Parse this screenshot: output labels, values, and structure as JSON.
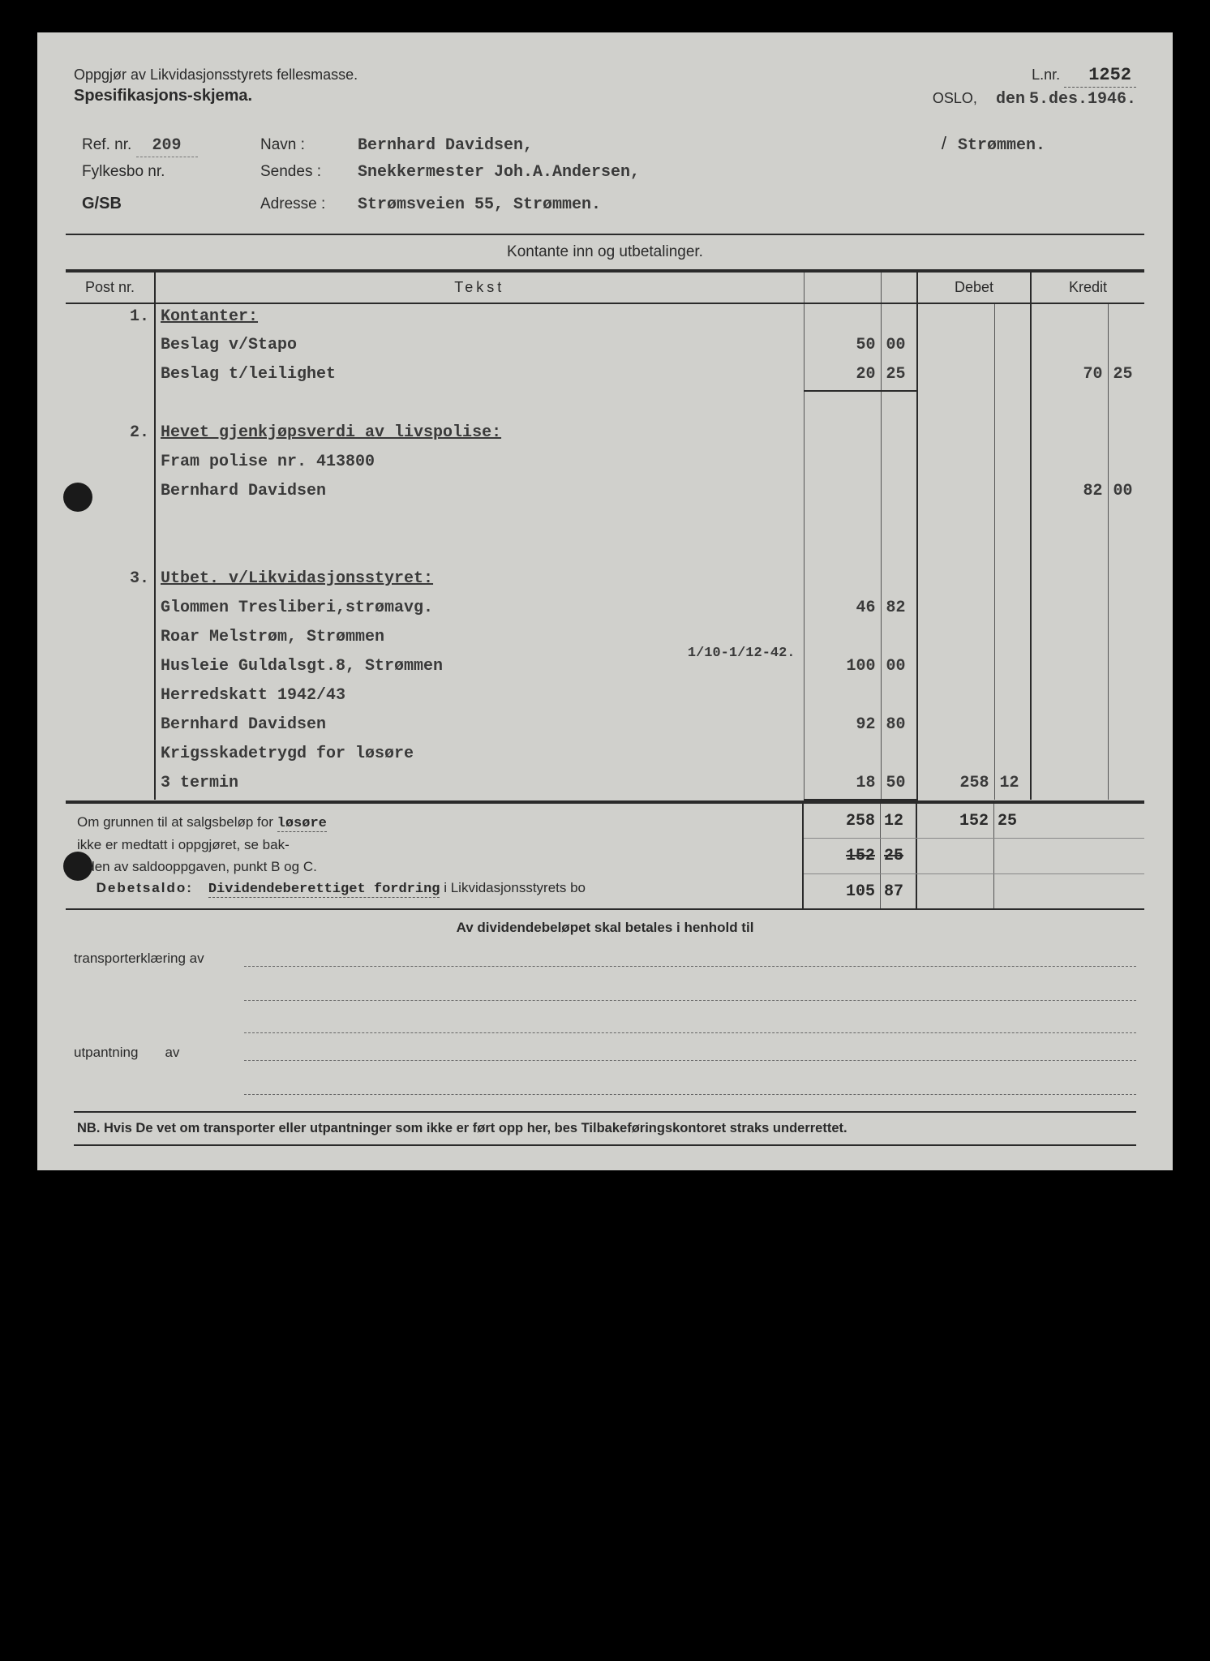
{
  "header": {
    "title_line1": "Oppgjør av Likvidasjonsstyrets fellesmasse.",
    "title_line2": "Spesifikasjons-skjema.",
    "lnr_label": "L.nr.",
    "lnr_value": "1252",
    "place": "OSLO,",
    "date_prefix": "den",
    "date_value": "5.des.1946."
  },
  "info": {
    "ref_label": "Ref. nr.",
    "ref_value": "209",
    "navn_label": "Navn :",
    "navn_value": "Bernhard Davidsen,",
    "navn_place": "Strømmen.",
    "fylkesbo_label": "Fylkesbo nr.",
    "fylkesbo_value": "",
    "sendes_label": "Sendes :",
    "sendes_value": "Snekkermester Joh.A.Andersen,",
    "code": "G/SB",
    "adresse_label": "Adresse :",
    "adresse_value": "Strømsveien 55, Strømmen."
  },
  "section_title": "Kontante inn og utbetalinger.",
  "columns": {
    "post": "Post nr.",
    "tekst": "Tekst",
    "debet": "Debet",
    "kredit": "Kredit"
  },
  "rows": [
    {
      "post": "1.",
      "tekst": "Kontanter:",
      "under": true
    },
    {
      "tekst": "Beslag v/Stapo",
      "s1": "50",
      "s2": "00"
    },
    {
      "tekst": "Beslag t/leilighet",
      "s1": "20",
      "s2": "25",
      "k1": "70",
      "k2": "25",
      "sub_line": true
    },
    {
      "blank": true
    },
    {
      "post": "2.",
      "tekst": "Hevet gjenkjøpsverdi av livspolise:",
      "under": true
    },
    {
      "tekst": "Fram polise nr. 413800"
    },
    {
      "tekst": "Bernhard Davidsen",
      "k1": "82",
      "k2": "00"
    },
    {
      "blank": true
    },
    {
      "blank": true
    },
    {
      "post": "3.",
      "tekst": "Utbet. v/Likvidasjonsstyret:",
      "under": true
    },
    {
      "tekst": "Glommen Tresliberi,strømavg.",
      "s1": "46",
      "s2": "82"
    },
    {
      "tekst": "Roar Melstrøm, Strømmen"
    },
    {
      "tekst_pre": "Husleie Guldalsgt.8, Strømmen",
      "tekst_sup": "1/10-1/12-42.",
      "s1": "100",
      "s2": "00"
    },
    {
      "tekst": "Herredskatt 1942/43"
    },
    {
      "tekst": "Bernhard Davidsen",
      "s1": "92",
      "s2": "80"
    },
    {
      "tekst": "Krigsskadetrygd for løsøre"
    },
    {
      "tekst": "3 termin",
      "s1": "18",
      "s2": "50",
      "d1": "258",
      "d2": "12",
      "sub_line": true
    }
  ],
  "footer": {
    "note_l1": "Om grunnen til at salgsbeløp for",
    "note_l1b": "løsøre",
    "note_l2": "ikke er medtatt i oppgjøret, se bak-",
    "note_l3": "siden av saldooppgaven, punkt B og C.",
    "debetsaldo_label": "Debetsaldo:",
    "debetsaldo_text1": "Dividendeberettiget fordring",
    "debetsaldo_text2": " i Likvidasjonsstyrets bo",
    "totals": [
      {
        "d1": "258",
        "d2": "12",
        "k1": "152",
        "k2": "25"
      },
      {
        "d1": "152",
        "d2": "25",
        "strike": true
      },
      {
        "d1": "105",
        "d2": "87"
      }
    ]
  },
  "dividend": {
    "title": "Av dividendebeløpet skal betales i henhold til",
    "row1_label": "transporterklæring av",
    "row2_label": "utpantning",
    "row2_label2": "av"
  },
  "nb": "NB.  Hvis De vet om transporter eller utpantninger som ikke er ført opp her, bes Tilbakeføringskontoret straks underrettet."
}
